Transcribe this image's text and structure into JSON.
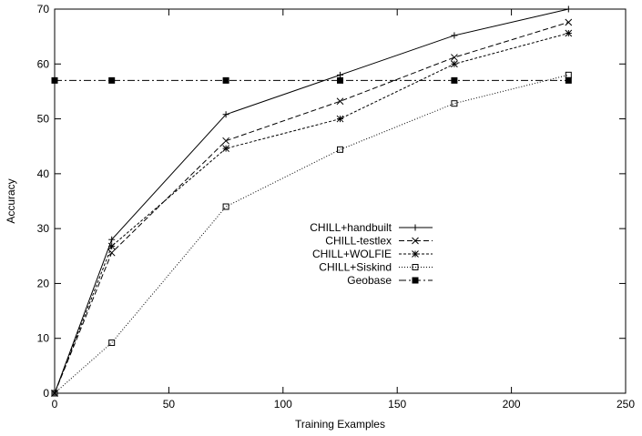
{
  "chart_data": {
    "type": "line",
    "title": "",
    "xlabel": "Training Examples",
    "ylabel": "Accuracy",
    "xlim": [
      0,
      250
    ],
    "ylim": [
      0,
      70
    ],
    "xticks": [
      0,
      50,
      100,
      150,
      200,
      250
    ],
    "yticks": [
      0,
      10,
      20,
      30,
      40,
      50,
      60,
      70
    ],
    "grid": false,
    "legend_position": "center-right",
    "x": [
      0,
      25,
      75,
      125,
      175,
      225
    ],
    "series": [
      {
        "name": "CHILL+handbuilt",
        "marker": "plus",
        "dash": "solid",
        "values": [
          0,
          28,
          50.8,
          58,
          65.2,
          70
        ]
      },
      {
        "name": "CHILL-testlex",
        "marker": "cross",
        "dash": "dashed",
        "values": [
          0,
          25.6,
          46,
          53.2,
          61.2,
          67.6
        ]
      },
      {
        "name": "CHILL+WOLFIE",
        "marker": "star",
        "dash": "shortdash",
        "values": [
          0,
          26.8,
          44.6,
          50,
          60,
          65.6
        ]
      },
      {
        "name": "CHILL+Siskind",
        "marker": "open-square",
        "dash": "dotted",
        "values": [
          0,
          9.2,
          34,
          44.4,
          52.8,
          58
        ]
      },
      {
        "name": "Geobase",
        "marker": "filled-square",
        "dash": "dashdot",
        "values": [
          57,
          57,
          57,
          57,
          57,
          57
        ]
      }
    ]
  }
}
